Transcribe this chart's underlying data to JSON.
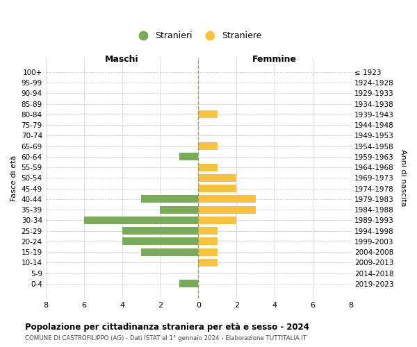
{
  "age_groups": [
    "100+",
    "95-99",
    "90-94",
    "85-89",
    "80-84",
    "75-79",
    "70-74",
    "65-69",
    "60-64",
    "55-59",
    "50-54",
    "45-49",
    "40-44",
    "35-39",
    "30-34",
    "25-29",
    "20-24",
    "15-19",
    "10-14",
    "5-9",
    "0-4"
  ],
  "birth_years": [
    "≤ 1923",
    "1924-1928",
    "1929-1933",
    "1934-1938",
    "1939-1943",
    "1944-1948",
    "1949-1953",
    "1954-1958",
    "1959-1963",
    "1964-1968",
    "1969-1973",
    "1974-1978",
    "1979-1983",
    "1984-1988",
    "1989-1993",
    "1994-1998",
    "1999-2003",
    "2004-2008",
    "2009-2013",
    "2014-2018",
    "2019-2023"
  ],
  "males": [
    0,
    0,
    0,
    0,
    0,
    0,
    0,
    0,
    1,
    0,
    0,
    0,
    3,
    2,
    6,
    4,
    4,
    3,
    0,
    0,
    1
  ],
  "females": [
    0,
    0,
    0,
    0,
    1,
    0,
    0,
    1,
    0,
    1,
    2,
    2,
    3,
    3,
    2,
    1,
    1,
    1,
    1,
    0,
    0
  ],
  "male_color": "#7aab5a",
  "female_color": "#f5c242",
  "male_label": "Stranieri",
  "female_label": "Straniere",
  "title": "Popolazione per cittadinanza straniera per età e sesso - 2024",
  "subtitle": "COMUNE DI CASTROFILIPPO (AG) - Dati ISTAT al 1° gennaio 2024 - Elaborazione TUTTITALIA.IT",
  "ylabel_left": "Fasce di età",
  "ylabel_right": "Anni di nascita",
  "xlabel_left": "Maschi",
  "xlabel_right": "Femmine",
  "xlim": 8,
  "background_color": "#ffffff",
  "grid_color": "#cccccc"
}
